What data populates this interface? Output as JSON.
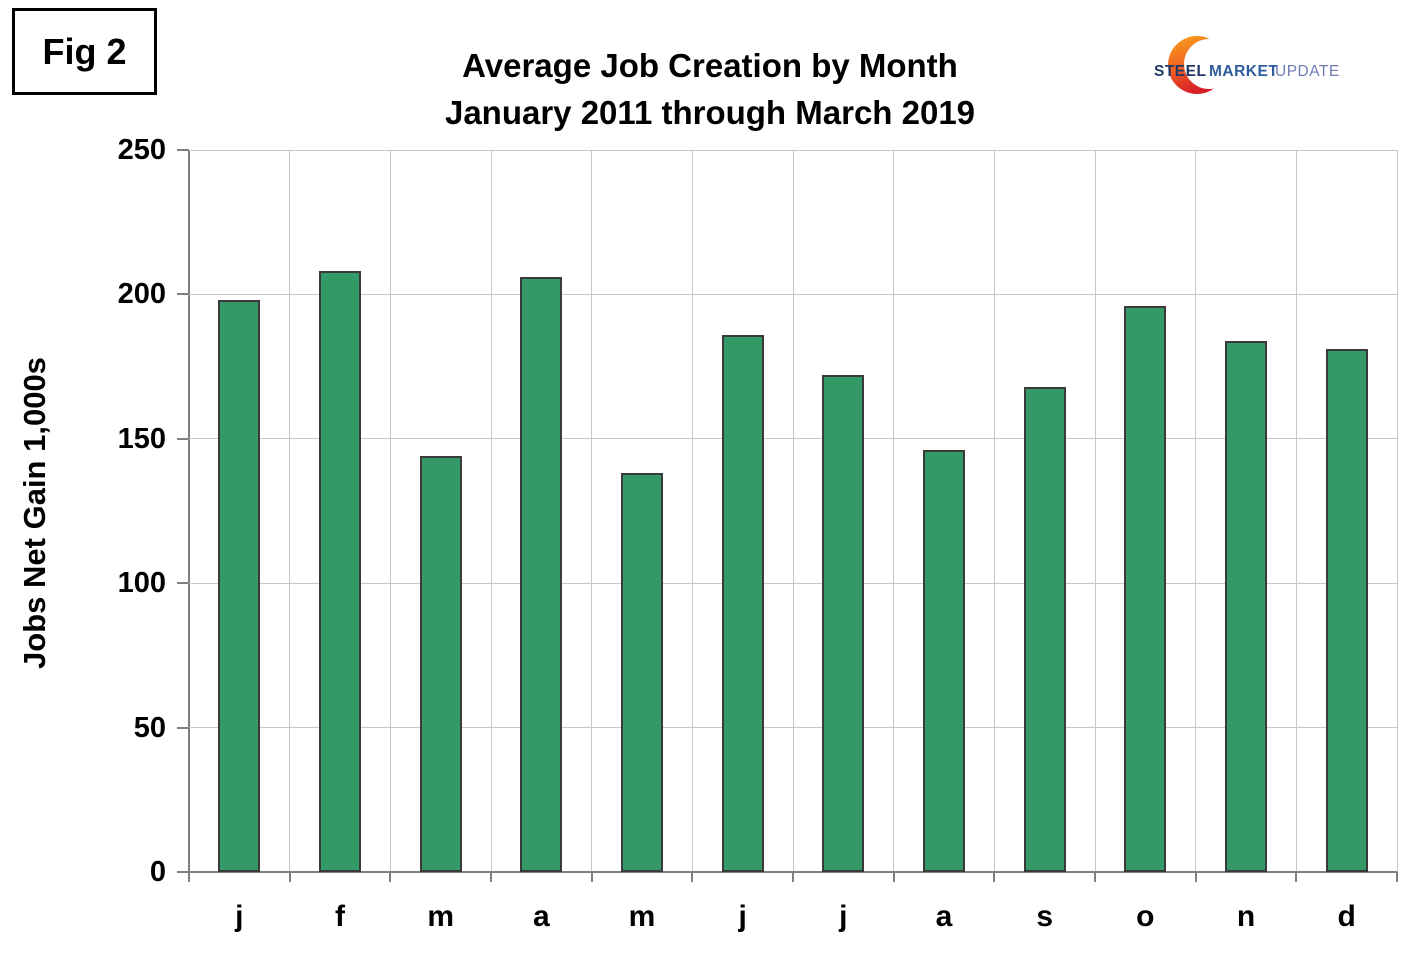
{
  "fig_label": "Fig 2",
  "header": {
    "title_line1": "Average Job Creation by Month",
    "title_line2": "January 2011 through March 2019"
  },
  "logo": {
    "word1": "STEEL",
    "word2": "MARKET",
    "word3": "UPDATE"
  },
  "chart_data": {
    "type": "bar",
    "title": "Average Job Creation by Month January 2011 through March 2019",
    "categories": [
      "j",
      "f",
      "m",
      "a",
      "m",
      "j",
      "j",
      "a",
      "s",
      "o",
      "n",
      "d"
    ],
    "values": [
      198,
      208,
      144,
      206,
      138,
      186,
      172,
      146,
      168,
      196,
      184,
      181
    ],
    "xlabel": "",
    "ylabel": "Jobs Net Gain 1,000s",
    "ylim": [
      0,
      250
    ],
    "yticks": [
      0,
      50,
      100,
      150,
      200,
      250
    ],
    "grid": true,
    "legend": "none",
    "bar_color": "#339966",
    "bar_border_color": "#3a3a3a",
    "gridline_color": "#c6c6c6",
    "axis_color": "#7f7f7f"
  }
}
